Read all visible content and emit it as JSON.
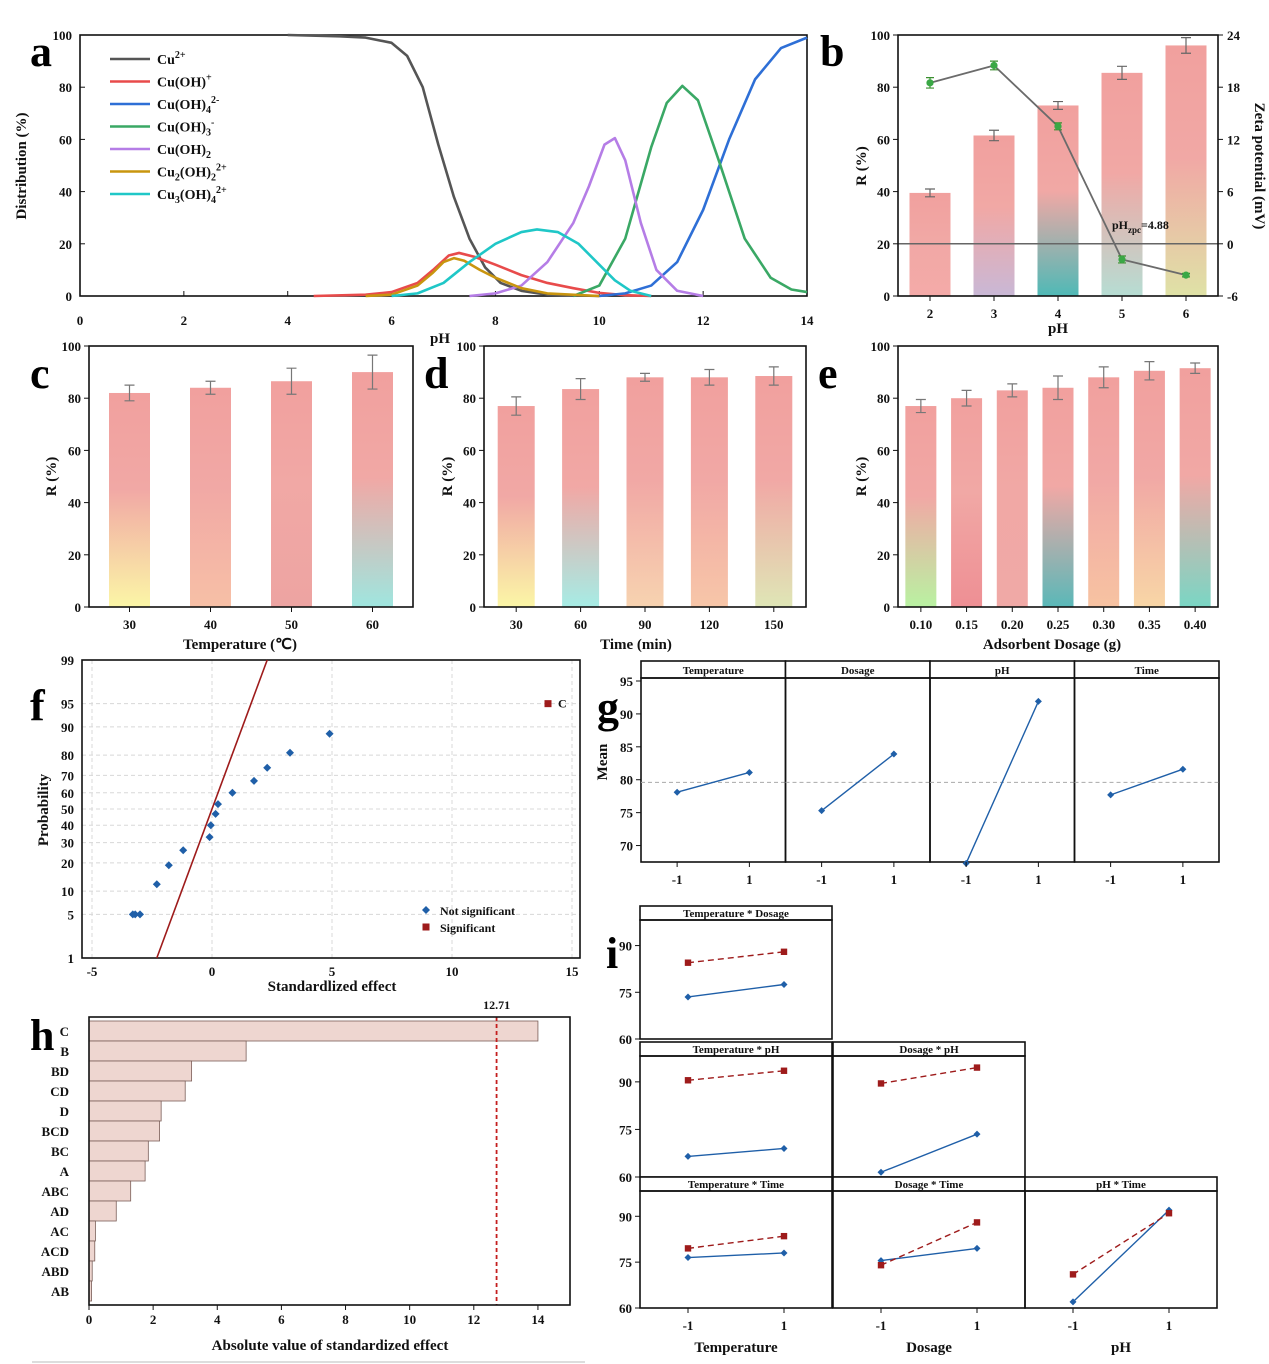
{
  "chart_data": [
    {
      "panel": "a",
      "type": "line",
      "xlabel": "pH",
      "ylabel": "Distribution (%)",
      "xlim": [
        0,
        14
      ],
      "ylim": [
        0,
        100
      ],
      "xticks": [
        "0",
        "2",
        "4",
        "6",
        "8",
        "10",
        "12",
        "14"
      ],
      "yticks": [
        "0",
        "20",
        "40",
        "60",
        "80",
        "100"
      ],
      "series": [
        {
          "name": "Cu2+",
          "label": "Cu",
          "sup": "2+",
          "sub": "",
          "sup2": "",
          "color": "#555555",
          "x": [
            4,
            5,
            5.5,
            6,
            6.3,
            6.6,
            6.9,
            7.2,
            7.5,
            7.8,
            8.1,
            8.5,
            9,
            10
          ],
          "y": [
            100,
            99.5,
            99,
            97,
            92,
            80,
            58,
            38,
            22,
            11,
            5,
            2,
            0.5,
            0
          ]
        },
        {
          "name": "Cu(OH)+",
          "label": "Cu(OH)",
          "sup": "+",
          "sub": "",
          "sup2": "",
          "color": "#e84b4b",
          "x": [
            4.5,
            5.5,
            6,
            6.5,
            6.8,
            7.1,
            7.3,
            7.6,
            8,
            8.5,
            9,
            9.5,
            10,
            10.5,
            11
          ],
          "y": [
            0,
            0.5,
            1.5,
            5,
            10,
            15.5,
            16.5,
            15,
            12,
            8,
            5,
            3,
            1.2,
            0.3,
            0
          ]
        },
        {
          "name": "Cu(OH)4 2-",
          "label": "Cu(OH)",
          "sub": "4",
          "sup": "2-",
          "sup2": "",
          "color": "#2e6fd6",
          "x": [
            10,
            10.5,
            11,
            11.5,
            12,
            12.5,
            13,
            13.5,
            14
          ],
          "y": [
            0,
            1,
            4,
            13,
            33,
            60,
            83,
            95,
            99
          ]
        },
        {
          "name": "Cu(OH)3 -",
          "label": "Cu(OH)",
          "sub": "3",
          "sup": "-",
          "sup2": "",
          "color": "#3aa865",
          "x": [
            9.5,
            10,
            10.5,
            11,
            11.3,
            11.6,
            11.9,
            12.3,
            12.8,
            13.3,
            13.7,
            14
          ],
          "y": [
            0,
            4,
            22,
            57,
            74,
            80.5,
            75,
            52,
            22,
            7,
            2.5,
            1.5
          ]
        },
        {
          "name": "Cu(OH)2",
          "label": "Cu(OH)",
          "sub": "2",
          "sup": "",
          "sup2": "",
          "color": "#b57de6",
          "x": [
            7.5,
            8,
            8.5,
            9,
            9.5,
            9.8,
            10.1,
            10.3,
            10.5,
            10.8,
            11.1,
            11.5,
            12
          ],
          "y": [
            0,
            1,
            4,
            13,
            28,
            42,
            58,
            60.5,
            52,
            28,
            10,
            2,
            0
          ]
        },
        {
          "name": "Cu2(OH)2 2+",
          "label": "Cu",
          "sub": "2",
          "mid": "(OH)",
          "sub2": "2",
          "sup": "2+",
          "color": "#c9950f",
          "x": [
            5.5,
            6,
            6.5,
            6.8,
            7,
            7.2,
            7.4,
            7.7,
            8,
            8.5,
            9,
            10
          ],
          "y": [
            0,
            0.5,
            4,
            9,
            13,
            14.5,
            13.5,
            10,
            7,
            3,
            1,
            0
          ]
        },
        {
          "name": "Cu3(OH)4 2+",
          "label": "Cu",
          "sub": "3",
          "mid": "(OH)",
          "sub2": "4",
          "sup": "2+",
          "color": "#1fc7c7",
          "x": [
            6,
            6.5,
            7,
            7.5,
            8,
            8.5,
            8.8,
            9.2,
            9.6,
            10,
            10.3,
            10.6,
            11
          ],
          "y": [
            0,
            1,
            5,
            13,
            20,
            24.5,
            25.5,
            24.5,
            20,
            12,
            6,
            2,
            0
          ]
        }
      ]
    },
    {
      "panel": "b",
      "type": "bar+line",
      "xlabel": "pH",
      "ylabel": "R (%)",
      "y2label": "Zeta potential (mV)",
      "categories": [
        "2",
        "3",
        "4",
        "5",
        "6"
      ],
      "values": [
        39.5,
        61.5,
        73,
        85.5,
        96
      ],
      "errors": [
        1.5,
        2,
        1.5,
        2.5,
        3
      ],
      "ylim": [
        0,
        100
      ],
      "yticks": [
        "0",
        "20",
        "40",
        "60",
        "80",
        "100"
      ],
      "y2lim": [
        -6,
        24
      ],
      "y2ticks": [
        "-6",
        "0",
        "6",
        "12",
        "18",
        "24"
      ],
      "zeta": [
        18.5,
        20.5,
        13.5,
        -1.8,
        -3.6
      ],
      "zeta_err": [
        0.6,
        0.5,
        0.4,
        0.4,
        0.2
      ],
      "annotation": "pH",
      "annotation_sub": "zpc",
      "annotation_tail": "=4.88",
      "bar_colors": [
        "#f4aaa8",
        "#c9b8d6",
        "#4fb9b6",
        "#b6ddd3",
        "#dfe2a6"
      ]
    },
    {
      "panel": "c",
      "type": "bar",
      "xlabel": "Temperature  (℃)",
      "ylabel": "R (%)",
      "categories": [
        "30",
        "40",
        "50",
        "60"
      ],
      "values": [
        82,
        84,
        86.5,
        90
      ],
      "errors": [
        3,
        2.5,
        5,
        6.5
      ],
      "ylim": [
        0,
        100
      ],
      "yticks": [
        "0",
        "20",
        "40",
        "60",
        "80",
        "100"
      ],
      "bar_colors": [
        "#fbf6a6",
        "#f7c0a6",
        "#eda4a2",
        "#9fe6df"
      ]
    },
    {
      "panel": "d",
      "type": "bar",
      "xlabel": "Time (min)",
      "ylabel": "R (%)",
      "categories": [
        "30",
        "60",
        "90",
        "120",
        "150"
      ],
      "values": [
        77,
        83.5,
        88,
        88,
        88.5
      ],
      "errors": [
        3.5,
        4,
        1.5,
        3,
        3.5
      ],
      "ylim": [
        0,
        100
      ],
      "yticks": [
        "0",
        "20",
        "40",
        "60",
        "80",
        "100"
      ],
      "bar_colors": [
        "#fbf6a6",
        "#a6ece5",
        "#f7d3b0",
        "#f7c6a8",
        "#dfe6b6"
      ]
    },
    {
      "panel": "e",
      "type": "bar",
      "xlabel": "Adsorbent Dosage  (g)",
      "ylabel": "R (%)",
      "categories": [
        "0.10",
        "0.15",
        "0.20",
        "0.25",
        "0.30",
        "0.35",
        "0.40"
      ],
      "values": [
        77,
        80,
        83,
        84,
        88,
        90.5,
        91.5
      ],
      "errors": [
        2.5,
        3,
        2.5,
        4.5,
        4,
        3.5,
        2
      ],
      "ylim": [
        0,
        100
      ],
      "yticks": [
        "0",
        "20",
        "40",
        "60",
        "80",
        "100"
      ],
      "bar_colors": [
        "#b9f2a2",
        "#ee8f94",
        "#f0a9a6",
        "#5ab8b8",
        "#f7c3a2",
        "#f8d6a6",
        "#7ad6c4"
      ]
    },
    {
      "panel": "f",
      "type": "scatter",
      "xlabel": "Standardlized effect",
      "ylabel": "Probability",
      "xlim": [
        -5,
        15
      ],
      "xticks": [
        "-5",
        "0",
        "5",
        "10",
        "15"
      ],
      "yticks": [
        "1",
        "5",
        "10",
        "20",
        "30",
        "40",
        "50",
        "60",
        "70",
        "80",
        "90",
        "95",
        "99"
      ],
      "legend": [
        {
          "label": "Not significant",
          "color": "#1f5fa8",
          "marker": "diamond"
        },
        {
          "label": "Significant",
          "color": "#9e1b1b",
          "marker": "square"
        }
      ],
      "points_not_significant": [
        {
          "x": -3.0,
          "p": 5
        },
        {
          "x": -3.2,
          "p": 5
        },
        {
          "x": -3.3,
          "p": 5
        },
        {
          "x": -2.3,
          "p": 12
        },
        {
          "x": -1.8,
          "p": 19
        },
        {
          "x": -1.2,
          "p": 26
        },
        {
          "x": -0.1,
          "p": 33
        },
        {
          "x": -0.05,
          "p": 40
        },
        {
          "x": 0.15,
          "p": 47
        },
        {
          "x": 0.25,
          "p": 53
        },
        {
          "x": 0.85,
          "p": 60
        },
        {
          "x": 1.75,
          "p": 67
        },
        {
          "x": 2.3,
          "p": 74
        },
        {
          "x": 3.25,
          "p": 81
        },
        {
          "x": 4.9,
          "p": 88
        }
      ],
      "points_significant": [
        {
          "x": 14.0,
          "p": 95,
          "label": "C"
        }
      ],
      "fit_line": {
        "x": [
          -2.3,
          2.3
        ],
        "p": [
          1,
          99
        ]
      }
    },
    {
      "panel": "g",
      "type": "line",
      "ylabel": "Mean",
      "ylim": [
        67.5,
        95
      ],
      "yticks": [
        "70",
        "75",
        "80",
        "85",
        "90",
        "95"
      ],
      "mean_line": 79.6,
      "facets": [
        {
          "title": "Temperature",
          "x": [
            "-1",
            "1"
          ],
          "y": [
            78.1,
            81.1
          ]
        },
        {
          "title": "Dosage",
          "x": [
            "-1",
            "1"
          ],
          "y": [
            75.3,
            83.9
          ]
        },
        {
          "title": "pH",
          "x": [
            "-1",
            "1"
          ],
          "y": [
            67.3,
            91.9
          ]
        },
        {
          "title": "Time",
          "x": [
            "-1",
            "1"
          ],
          "y": [
            77.7,
            81.6
          ]
        }
      ]
    },
    {
      "panel": "h",
      "type": "bar",
      "orientation": "horizontal",
      "xlabel": "Absolute value of standardized effect",
      "xlim": [
        0,
        15
      ],
      "xticks": [
        "0",
        "2",
        "4",
        "6",
        "8",
        "10",
        "12",
        "14"
      ],
      "reference_value": 12.71,
      "reference_label": "12.71",
      "categories": [
        "C",
        "B",
        "BD",
        "CD",
        "D",
        "BCD",
        "BC",
        "A",
        "ABC",
        "AD",
        "AC",
        "ACD",
        "ABD",
        "AB"
      ],
      "values": [
        14.0,
        4.9,
        3.2,
        3.0,
        2.25,
        2.2,
        1.85,
        1.75,
        1.3,
        0.85,
        0.2,
        0.18,
        0.1,
        0.08
      ]
    },
    {
      "panel": "i",
      "type": "line",
      "facets": [
        {
          "title": "Temperature * Dosage",
          "row": 0,
          "col": 0,
          "ylim": [
            60,
            95
          ],
          "yticks": [
            "60",
            "75",
            "90"
          ],
          "solid": [
            73.5,
            77.5
          ],
          "dashed": [
            84.5,
            88.0
          ]
        },
        {
          "title": "Temperature * pH",
          "row": 1,
          "col": 0,
          "ylim": [
            60,
            95
          ],
          "yticks": [
            "60",
            "75",
            "90"
          ],
          "solid": [
            66.5,
            69.0
          ],
          "dashed": [
            90.5,
            93.5
          ]
        },
        {
          "title": "Dosage * pH",
          "row": 1,
          "col": 1,
          "ylim": [
            60,
            95
          ],
          "yticks": [],
          "solid": [
            61.5,
            73.5
          ],
          "dashed": [
            89.5,
            94.5
          ]
        },
        {
          "title": "Temperature * Time",
          "row": 2,
          "col": 0,
          "ylim": [
            60,
            95
          ],
          "yticks": [
            "60",
            "75",
            "90"
          ],
          "solid": [
            76.5,
            78.0
          ],
          "dashed": [
            79.5,
            83.5
          ]
        },
        {
          "title": "Dosage * Time",
          "row": 2,
          "col": 1,
          "ylim": [
            60,
            95
          ],
          "yticks": [],
          "solid": [
            75.5,
            79.5
          ],
          "dashed": [
            74.0,
            88.0
          ]
        },
        {
          "title": "pH * Time",
          "row": 2,
          "col": 2,
          "ylim": [
            60,
            95
          ],
          "yticks": [],
          "solid": [
            62.0,
            92.0
          ],
          "dashed": [
            71.0,
            91.0
          ]
        }
      ],
      "xticks": [
        "-1",
        "1"
      ],
      "xlabels": [
        "Temperature",
        "Dosage",
        "pH"
      ],
      "solid_color": "#1f5fa8",
      "dashed_color": "#9e1b1b"
    }
  ]
}
